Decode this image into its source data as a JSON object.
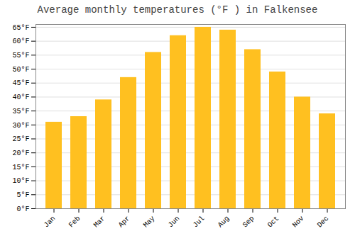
{
  "chart_data": {
    "type": "bar",
    "title": "Average monthly temperatures (°F ) in Falkensee",
    "categories": [
      "Jan",
      "Feb",
      "Mar",
      "Apr",
      "May",
      "Jun",
      "Jul",
      "Aug",
      "Sep",
      "Oct",
      "Nov",
      "Dec"
    ],
    "values": [
      31,
      33,
      39,
      47,
      56,
      62,
      65,
      64,
      57,
      49,
      40,
      34
    ],
    "color": "#FFC020",
    "ylim": [
      0,
      66
    ],
    "yticks": [
      {
        "value": 0,
        "label": "0°F"
      },
      {
        "value": 5,
        "label": "5°F"
      },
      {
        "value": 10,
        "label": "10°F"
      },
      {
        "value": 15,
        "label": "15°F"
      },
      {
        "value": 20,
        "label": "20°F"
      },
      {
        "value": 25,
        "label": "25°F"
      },
      {
        "value": 30,
        "label": "30°F"
      },
      {
        "value": 35,
        "label": "35°F"
      },
      {
        "value": 40,
        "label": "40°F"
      },
      {
        "value": 45,
        "label": "45°F"
      },
      {
        "value": 50,
        "label": "50°F"
      },
      {
        "value": 55,
        "label": "55°F"
      },
      {
        "value": 60,
        "label": "60°F"
      },
      {
        "value": 65,
        "label": "65°F"
      }
    ],
    "grid": true
  }
}
